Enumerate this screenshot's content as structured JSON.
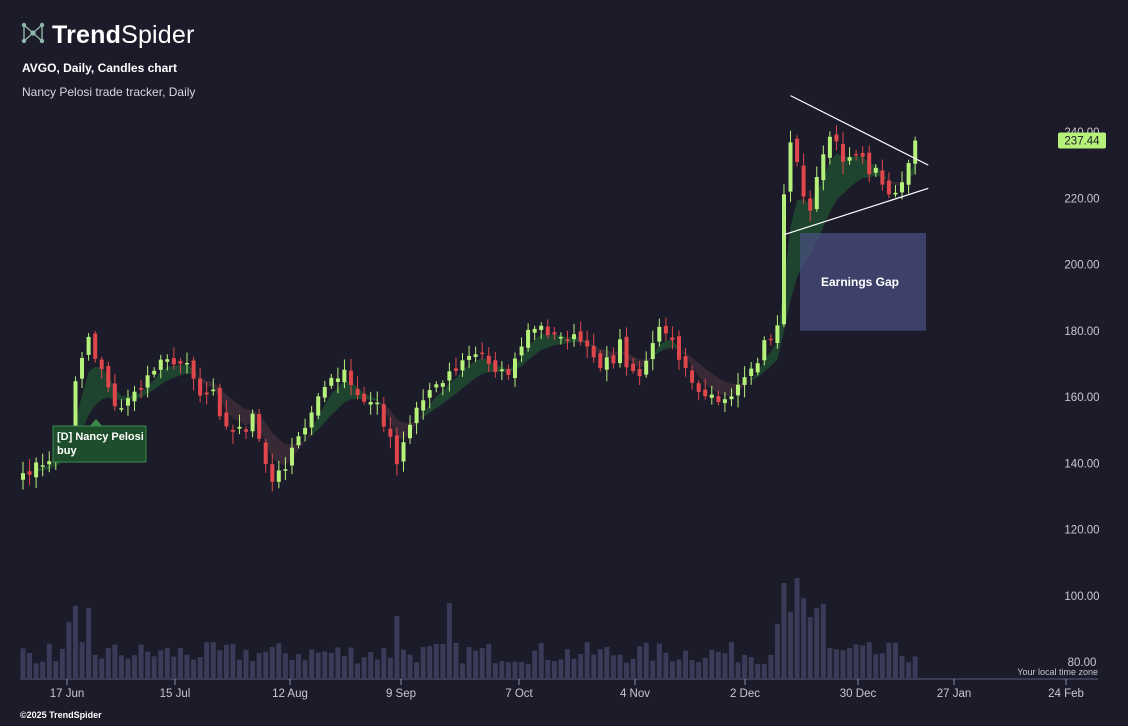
{
  "brand": {
    "name_bold": "Trend",
    "name_light": "Spider",
    "logo_icon": "trendspider-network-icon"
  },
  "chart_title": "AVGO, Daily, Candles chart",
  "indicator_title": "Nancy Pelosi trade tracker, Daily",
  "footer": "©2025 TrendSpider",
  "timezone_label": "Your local time zone",
  "colors": {
    "background": "#1b1b2a",
    "up": "#b6f27a",
    "down": "#e0474c",
    "ribbon_up": "#1f4a30",
    "ribbon_down": "#3d2b38",
    "volume": "#3a3b58",
    "gap_box": "#4a4f80",
    "price_badge": "#b6f27a"
  },
  "chart_data": {
    "type": "candlestick",
    "title": "AVGO, Daily, Candles chart",
    "ylim": [
      77,
      255
    ],
    "y_ticks": [
      "240.00",
      "220.00",
      "200.00",
      "180.00",
      "160.00",
      "140.00",
      "120.00",
      "100.00",
      "80.00"
    ],
    "x_ticks": [
      "17 Jun",
      "15 Jul",
      "12 Aug",
      "9 Sep",
      "7 Oct",
      "4 Nov",
      "2 Dec",
      "30 Dec",
      "27 Jan",
      "24 Feb"
    ],
    "last_price": "237.44",
    "anchors": [
      [
        0,
        137
      ],
      [
        3,
        140
      ],
      [
        5,
        143
      ],
      [
        7,
        149
      ],
      [
        8,
        164
      ],
      [
        10,
        178
      ],
      [
        11,
        171
      ],
      [
        12,
        168
      ],
      [
        13,
        162
      ],
      [
        14,
        158
      ],
      [
        15,
        157
      ],
      [
        17,
        161
      ],
      [
        19,
        166
      ],
      [
        21,
        170
      ],
      [
        23,
        171
      ],
      [
        25,
        169
      ],
      [
        26,
        165
      ],
      [
        27,
        160
      ],
      [
        29,
        161
      ],
      [
        30,
        153
      ],
      [
        32,
        150
      ],
      [
        34,
        150
      ],
      [
        35,
        156
      ],
      [
        36,
        148
      ],
      [
        37,
        140
      ],
      [
        38,
        135
      ],
      [
        40,
        138
      ],
      [
        41,
        144
      ],
      [
        42,
        147
      ],
      [
        43,
        152
      ],
      [
        45,
        160
      ],
      [
        47,
        166
      ],
      [
        49,
        167
      ],
      [
        50,
        165
      ],
      [
        51,
        161
      ],
      [
        52,
        159
      ],
      [
        54,
        157
      ],
      [
        55,
        151
      ],
      [
        56,
        149
      ],
      [
        57,
        140
      ],
      [
        58,
        147
      ],
      [
        60,
        157
      ],
      [
        62,
        162
      ],
      [
        64,
        165
      ],
      [
        66,
        168
      ],
      [
        68,
        172
      ],
      [
        70,
        173
      ],
      [
        72,
        167
      ],
      [
        74,
        167
      ],
      [
        75,
        171
      ],
      [
        76,
        176
      ],
      [
        77,
        180
      ],
      [
        79,
        182
      ],
      [
        80,
        179
      ],
      [
        82,
        177
      ],
      [
        83,
        178
      ],
      [
        85,
        178
      ],
      [
        87,
        173
      ],
      [
        88,
        170
      ],
      [
        90,
        171
      ],
      [
        91,
        177
      ],
      [
        92,
        170
      ],
      [
        93,
        168
      ],
      [
        94,
        166
      ],
      [
        95,
        172
      ],
      [
        96,
        175
      ],
      [
        97,
        180
      ],
      [
        98,
        178
      ],
      [
        99,
        176
      ],
      [
        100,
        170
      ],
      [
        101,
        168
      ],
      [
        102,
        165
      ],
      [
        103,
        163
      ],
      [
        104,
        161
      ],
      [
        105,
        162
      ],
      [
        106,
        160
      ],
      [
        107,
        159
      ],
      [
        108,
        161
      ],
      [
        109,
        163
      ],
      [
        110,
        166
      ],
      [
        111,
        168
      ],
      [
        112,
        171
      ],
      [
        113,
        176
      ],
      [
        114,
        178
      ],
      [
        115,
        182
      ],
      [
        116,
        220
      ],
      [
        117,
        238
      ],
      [
        118,
        231
      ],
      [
        119,
        222
      ],
      [
        120,
        215
      ],
      [
        121,
        226
      ],
      [
        122,
        232
      ],
      [
        123,
        240
      ],
      [
        124,
        236
      ],
      [
        125,
        232
      ],
      [
        126,
        231
      ],
      [
        127,
        233
      ],
      [
        128,
        232
      ],
      [
        129,
        228
      ],
      [
        130,
        230
      ],
      [
        131,
        225
      ],
      [
        132,
        221
      ],
      [
        133,
        223
      ],
      [
        134,
        224
      ],
      [
        135,
        230
      ],
      [
        136,
        237.4
      ]
    ],
    "volume_note": "relative volume bars along the bottom",
    "annotations": [
      {
        "type": "label",
        "text": "[D] Nancy Pelosi buy"
      },
      {
        "type": "box",
        "text": "Earnings Gap",
        "y_range": [
          180,
          209.5
        ]
      },
      {
        "type": "line",
        "desc": "upper triangle trendline",
        "points": [
          [
            117,
            251
          ],
          [
            138,
            230
          ]
        ]
      },
      {
        "type": "line",
        "desc": "lower triangle trendline",
        "points": [
          [
            116,
            209
          ],
          [
            138,
            223
          ]
        ]
      }
    ]
  }
}
